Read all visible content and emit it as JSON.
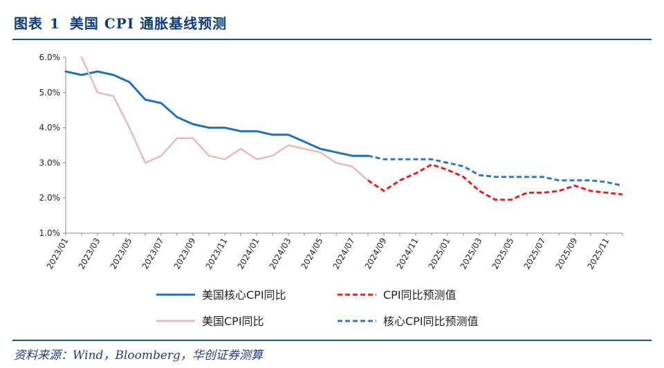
{
  "header": {
    "label": "图表",
    "number": "1",
    "title": "美国 CPI 通胀基线预测"
  },
  "footer": {
    "source": "资料来源：Wind，Bloomberg，华创证券测算"
  },
  "chart_data": {
    "type": "line",
    "title": "美国 CPI 通胀基线预测",
    "xlabel": "",
    "ylabel": "",
    "ylim": [
      1.0,
      6.0
    ],
    "yticks": [
      "1.0%",
      "2.0%",
      "3.0%",
      "4.0%",
      "5.0%",
      "6.0%"
    ],
    "xtick_labels": [
      "2023/01",
      "2023/03",
      "2023/05",
      "2023/07",
      "2023/09",
      "2023/11",
      "2024/01",
      "2024/03",
      "2024/05",
      "2024/07",
      "2024/09",
      "2024/11",
      "2025/01",
      "2025/03",
      "2025/05",
      "2025/07",
      "2025/09",
      "2025/11"
    ],
    "legend_position": "bottom",
    "series": [
      {
        "name": "美国核心CPI同比",
        "color": "#1f6fbf",
        "style": "solid",
        "x": [
          "2023/01",
          "2023/02",
          "2023/03",
          "2023/04",
          "2023/05",
          "2023/06",
          "2023/07",
          "2023/08",
          "2023/09",
          "2023/10",
          "2023/11",
          "2023/12",
          "2024/01",
          "2024/02",
          "2024/03",
          "2024/04",
          "2024/05",
          "2024/06",
          "2024/07",
          "2024/08"
        ],
        "values": [
          5.6,
          5.5,
          5.6,
          5.5,
          5.3,
          4.8,
          4.7,
          4.3,
          4.1,
          4.0,
          4.0,
          3.9,
          3.9,
          3.8,
          3.8,
          3.6,
          3.4,
          3.3,
          3.2,
          3.2
        ]
      },
      {
        "name": "美国CPI同比",
        "color": "#e8b9b6",
        "style": "solid",
        "x": [
          "2023/02",
          "2023/03",
          "2023/04",
          "2023/05",
          "2023/06",
          "2023/07",
          "2023/08",
          "2023/09",
          "2023/10",
          "2023/11",
          "2023/12",
          "2024/01",
          "2024/02",
          "2024/03",
          "2024/04",
          "2024/05",
          "2024/06",
          "2024/07",
          "2024/08"
        ],
        "values": [
          6.0,
          5.0,
          4.9,
          4.0,
          3.0,
          3.2,
          3.7,
          3.7,
          3.2,
          3.1,
          3.4,
          3.1,
          3.2,
          3.5,
          3.4,
          3.3,
          3.0,
          2.9,
          2.5
        ]
      },
      {
        "name": "CPI同比预测值",
        "color": "#ee1c1c",
        "style": "dashed",
        "x": [
          "2024/08",
          "2024/09",
          "2024/10",
          "2024/11",
          "2024/12",
          "2025/01",
          "2025/02",
          "2025/03",
          "2025/04",
          "2025/05",
          "2025/06",
          "2025/07",
          "2025/08",
          "2025/09",
          "2025/10",
          "2025/11",
          "2025/12"
        ],
        "values": [
          2.5,
          2.2,
          2.5,
          2.7,
          2.95,
          2.8,
          2.6,
          2.2,
          1.95,
          1.95,
          2.15,
          2.15,
          2.2,
          2.35,
          2.2,
          2.15,
          2.1
        ]
      },
      {
        "name": "核心CPI同比预测值",
        "color": "#2e78c4",
        "style": "dashed",
        "x": [
          "2024/08",
          "2024/09",
          "2024/10",
          "2024/11",
          "2024/12",
          "2025/01",
          "2025/02",
          "2025/03",
          "2025/04",
          "2025/05",
          "2025/06",
          "2025/07",
          "2025/08",
          "2025/09",
          "2025/10",
          "2025/11",
          "2025/12"
        ],
        "values": [
          3.2,
          3.1,
          3.1,
          3.1,
          3.1,
          3.0,
          2.9,
          2.65,
          2.6,
          2.6,
          2.6,
          2.6,
          2.5,
          2.5,
          2.5,
          2.45,
          2.35
        ]
      }
    ]
  }
}
